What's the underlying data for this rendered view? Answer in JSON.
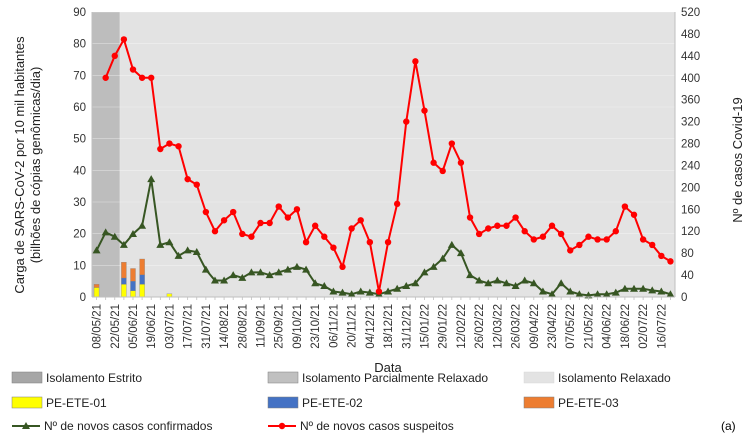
{
  "chart_data": {
    "type": "bar+line",
    "xlabel": "Data",
    "ylabel_left_line1": "Carga de SARS-CoV-2 por 10 mil habitantes",
    "ylabel_left_line2": "(bilhões de cópias genômicas/dia)",
    "ylabel_right": "Nº de casos Covid-19",
    "ylim_left": [
      0,
      90
    ],
    "ylim_right": [
      0,
      520
    ],
    "yticks_left": [
      0,
      10,
      20,
      30,
      40,
      50,
      60,
      70,
      80,
      90
    ],
    "yticks_right": [
      0,
      40,
      80,
      120,
      160,
      200,
      240,
      280,
      320,
      360,
      400,
      440,
      480,
      520
    ],
    "x_tick_labels": [
      "08/05/21",
      "22/05/21",
      "05/06/21",
      "19/06/21",
      "03/07/21",
      "17/07/21",
      "31/07/21",
      "14/08/21",
      "28/08/21",
      "11/09/21",
      "25/09/21",
      "09/10/21",
      "23/10/21",
      "06/11/21",
      "20/11/21",
      "04/12/21",
      "18/12/21",
      "31/12/21",
      "15/01/22",
      "29/01/22",
      "12/02/22",
      "26/02/22",
      "12/03/22",
      "26/03/22",
      "09/04/22",
      "23/04/22",
      "07/05/22",
      "21/05/22",
      "04/06/22",
      "18/06/22",
      "02/07/22",
      "16/07/22"
    ],
    "n_weeks": 64,
    "periods": [
      {
        "name": "Isolamento Estrito",
        "start_week": 1,
        "end_week": 4,
        "color": "#bdbdbd"
      },
      {
        "name": "Isolamento Parcialmente Relaxado",
        "start_week": 4,
        "end_week": 4.1,
        "color": "#c8c8c8"
      },
      {
        "name": "Isolamento Relaxado",
        "start_week": 4.1,
        "end_week": 65,
        "color": "#e3e3e3"
      }
    ],
    "bar_series": [
      {
        "name": "PE-ETE-01",
        "color": "#ffff00",
        "values": [
          3,
          0,
          0,
          4,
          2,
          4,
          0,
          0,
          1,
          0,
          0,
          0,
          0,
          0,
          0,
          0,
          0,
          0,
          0,
          0,
          0,
          0,
          0,
          0,
          0,
          0,
          0,
          0,
          0,
          0,
          0,
          0,
          0,
          0,
          0,
          0,
          0,
          0,
          0,
          0,
          0,
          0,
          0,
          0,
          0,
          0,
          0,
          0,
          0,
          0,
          0,
          0,
          0,
          0,
          0,
          0,
          0,
          0,
          0,
          0,
          0,
          0,
          0,
          0
        ]
      },
      {
        "name": "PE-ETE-02",
        "color": "#4472c4",
        "values": [
          0,
          0,
          0,
          2,
          3,
          3,
          0,
          0,
          0,
          0,
          0,
          0,
          0,
          0,
          0,
          0,
          0,
          0,
          0,
          0,
          0,
          0,
          0,
          0,
          0,
          0,
          0,
          0,
          0,
          0,
          0,
          0,
          0,
          0,
          0,
          0,
          0,
          0,
          0,
          0,
          0,
          0,
          0,
          0,
          0,
          0,
          0,
          0,
          0,
          0,
          0,
          0,
          0,
          0,
          0,
          0,
          0,
          0,
          0,
          0,
          0,
          0,
          0,
          0
        ]
      },
      {
        "name": "PE-ETE-03",
        "color": "#ed7d31",
        "values": [
          1,
          0,
          0,
          5,
          4,
          5,
          0,
          0,
          0,
          0,
          0,
          0,
          0,
          0,
          0,
          0,
          0,
          0,
          0,
          0,
          0,
          0,
          0,
          0,
          0,
          0,
          0,
          0,
          0,
          0,
          0,
          0,
          0,
          0,
          0,
          0,
          0,
          0,
          0,
          0,
          0,
          0,
          0,
          0,
          0,
          0,
          0,
          0,
          0,
          0,
          0,
          0,
          0,
          0,
          0,
          0,
          0,
          0,
          0,
          0,
          0,
          0,
          0,
          0
        ]
      }
    ],
    "line_series": [
      {
        "name": "Nº de novos casos confirmados",
        "color": "#375623",
        "marker": "triangle",
        "values": [
          85,
          118,
          110,
          95,
          115,
          130,
          215,
          95,
          100,
          75,
          85,
          82,
          50,
          30,
          30,
          40,
          35,
          45,
          45,
          40,
          45,
          50,
          55,
          50,
          25,
          20,
          10,
          8,
          5,
          10,
          8,
          5,
          10,
          15,
          20,
          25,
          45,
          55,
          70,
          95,
          80,
          40,
          30,
          25,
          30,
          25,
          20,
          30,
          25,
          10,
          5,
          25,
          10,
          5,
          3,
          5,
          5,
          8,
          15,
          15,
          15,
          12,
          10,
          5
        ]
      },
      {
        "name": "Nº de novos casos suspeitos",
        "color": "#ff0000",
        "marker": "circle",
        "values": [
          null,
          400,
          440,
          470,
          415,
          400,
          400,
          270,
          280,
          275,
          215,
          205,
          155,
          120,
          140,
          155,
          115,
          110,
          135,
          135,
          165,
          145,
          160,
          100,
          130,
          110,
          90,
          55,
          125,
          140,
          100,
          10,
          100,
          170,
          320,
          430,
          340,
          245,
          230,
          280,
          245,
          145,
          115,
          125,
          130,
          130,
          145,
          120,
          105,
          110,
          130,
          115,
          85,
          95,
          110,
          105,
          105,
          120,
          165,
          150,
          105,
          95,
          75,
          65
        ]
      }
    ],
    "legend": [
      {
        "label": "Isolamento Estrito",
        "kind": "box",
        "color": "#a6a6a6"
      },
      {
        "label": "Isolamento Parcialmente Relaxado",
        "kind": "box",
        "color": "#c0c0c0"
      },
      {
        "label": "Isolamento Relaxado",
        "kind": "box",
        "color": "#e3e3e3"
      },
      {
        "label": "PE-ETE-01",
        "kind": "box",
        "color": "#ffff00"
      },
      {
        "label": "PE-ETE-02",
        "kind": "box",
        "color": "#4472c4"
      },
      {
        "label": "PE-ETE-03",
        "kind": "box",
        "color": "#ed7d31"
      },
      {
        "label": "Nº de novos casos confirmados",
        "kind": "line-triangle",
        "color": "#375623"
      },
      {
        "label": "Nº de novos casos suspeitos",
        "kind": "line-circle",
        "color": "#ff0000"
      }
    ],
    "panel_label": "(a)"
  }
}
